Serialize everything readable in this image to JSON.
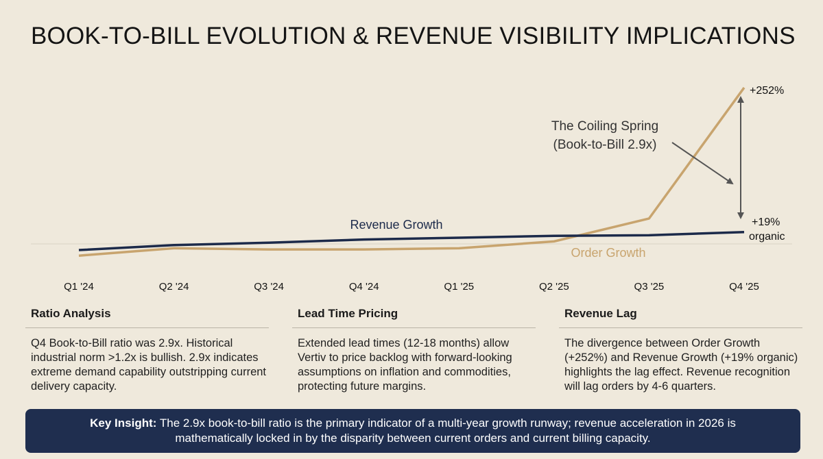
{
  "title": "BOOK-TO-BILL EVOLUTION & REVENUE VISIBILITY IMPLICATIONS",
  "chart_data": {
    "type": "line",
    "title": "BOOK-TO-BILL EVOLUTION & REVENUE VISIBILITY IMPLICATIONS",
    "x": [
      "Q1 '24",
      "Q2 '24",
      "Q3 '24",
      "Q4 '24",
      "Q1 '25",
      "Q2 '25",
      "Q3 '25",
      "Q4 '25"
    ],
    "series": [
      {
        "name": "Revenue Growth",
        "color": "#1c2a4a",
        "values": [
          -10,
          -2,
          2,
          7,
          10,
          13,
          14,
          19
        ]
      },
      {
        "name": "Order Growth",
        "color": "#c8a46e",
        "values": [
          -19,
          -7,
          -9,
          -9,
          -7,
          4,
          41,
          252
        ]
      }
    ],
    "ylim": [
      -25,
      260
    ],
    "grid": false,
    "annotations": {
      "order_end_label": "+252%",
      "revenue_end_label_1": "+19%",
      "revenue_end_label_2": "organic",
      "spring_line1": "The Coiling Spring",
      "spring_line2": "(Book-to-Bill 2.9x)"
    }
  },
  "columns": [
    {
      "heading": "Ratio Analysis",
      "body": "Q4 Book-to-Bill ratio was 2.9x. Historical industrial norm >1.2x is bullish. 2.9x indicates extreme demand capability outstripping current delivery capacity."
    },
    {
      "heading": "Lead Time Pricing",
      "body": "Extended lead times (12-18 months) allow Vertiv to price backlog with forward-looking assumptions on inflation and commodities, protecting future margins."
    },
    {
      "heading": "Revenue Lag",
      "body": "The divergence between Order Growth (+252%) and Revenue Growth (+19% organic) highlights the lag effect. Revenue recognition will lag orders by 4-6 quarters."
    }
  ],
  "insight": {
    "label": "Key Insight:",
    "text": " The 2.9x book-to-bill ratio is the primary indicator of a multi-year growth runway; revenue acceleration in 2026 is mathematically locked in by the disparity between current orders and current billing capacity."
  }
}
